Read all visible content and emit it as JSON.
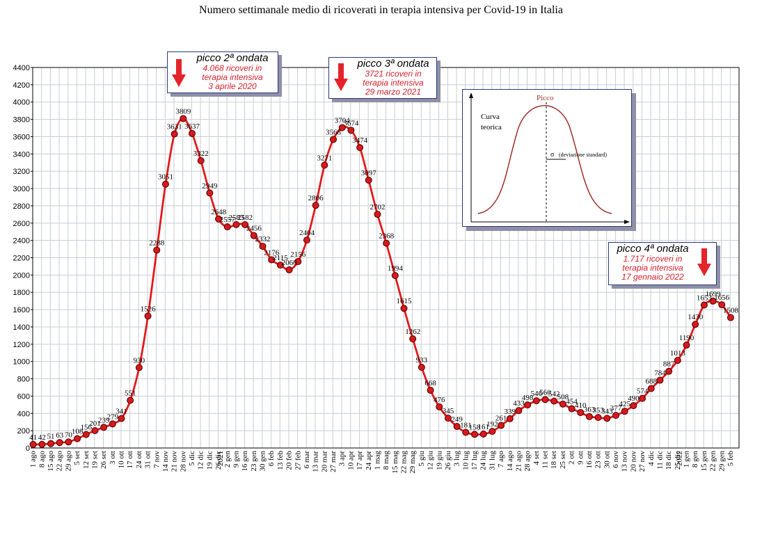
{
  "chart_data": {
    "type": "line",
    "title": "Numero settimanale medio di ricoverati in terapia intensiva per Covid-19 in Italia",
    "ylim": [
      0,
      4400
    ],
    "y_ticks": [
      0,
      200,
      400,
      600,
      800,
      1000,
      1200,
      1400,
      1600,
      1800,
      2000,
      2200,
      2400,
      2600,
      2800,
      3000,
      3200,
      3400,
      3600,
      3800,
      4000,
      4200,
      4400
    ],
    "x": [
      "1 ago",
      "8 ago",
      "15 ago",
      "22 ago",
      "29 ago",
      "5 set",
      "12 set",
      "19 set",
      "26 set",
      "3 ott",
      "10 ott",
      "17 ott",
      "24 ott",
      "31 ott",
      "7 nov",
      "14 nov",
      "21 nov",
      "28 nov",
      "5 dic",
      "12 dic",
      "19 dic",
      "26 dic",
      "2 gen",
      "9 gen",
      "16 gen",
      "23 gen",
      "30 gen",
      "6 feb",
      "13 feb",
      "20 feb",
      "27 feb",
      "6 mar",
      "13 mar",
      "20 mar",
      "27 mar",
      "3 apr",
      "10 apr",
      "17 apr",
      "24 apr",
      "1 mag",
      "8 mag",
      "15 mag",
      "22 mag",
      "29 mag",
      "5 giu",
      "12 giu",
      "19 giu",
      "26 giu",
      "3 lug",
      "10 lug",
      "17 lug",
      "24 lug",
      "31 lug",
      "7 ago",
      "14 ago",
      "21 ago",
      "28 ago",
      "4 set",
      "11 set",
      "18 set",
      "25 set",
      "2 ott",
      "9 ott",
      "16 ott",
      "23 ott",
      "30 ott",
      "6 nov",
      "13 nov",
      "20 nov",
      "27 nov",
      "4 dic",
      "11 dic",
      "18 dic",
      "25 dic",
      "1 gen",
      "8 gen",
      "15 gen",
      "22 gen",
      "29 gen",
      "5 feb"
    ],
    "year_labels": [
      {
        "label": "2021",
        "index": 22
      },
      {
        "label": "2022",
        "index": 74
      }
    ],
    "series": [
      {
        "values": [
          41,
          42,
          51,
          63,
          70,
          108,
          156,
          201,
          239,
          279,
          341,
          551,
          930,
          1526,
          2288,
          3051,
          3631,
          3809,
          3637,
          3322,
          2949,
          2648,
          2557,
          2583,
          2582,
          2456,
          2332,
          2176,
          2115,
          2060,
          2156,
          2404,
          2806,
          3271,
          3568,
          3704,
          3674,
          3474,
          3097,
          2702,
          2368,
          1994,
          1615,
          1262,
          933,
          668,
          476,
          345,
          249,
          181,
          158,
          161,
          192,
          261,
          339,
          433,
          498,
          546,
          560,
          542,
          508,
          454,
          410,
          363,
          353,
          343,
          377,
          425,
          490,
          574,
          688,
          784,
          887,
          1013,
          1190,
          1430,
          1653,
          1699,
          1656,
          1508
        ],
        "labels": [
          "41",
          "42",
          "51",
          "63",
          "70",
          "108",
          "156",
          "201",
          "239",
          "279",
          "341",
          "551",
          "930",
          "1526",
          "2288",
          "3051",
          "3631",
          "3809",
          "3637",
          "3322",
          "2949",
          "2648",
          "2557",
          "2583",
          "2582",
          "2456",
          "2332",
          "2176",
          "2115",
          "2060",
          "2156",
          "2404",
          "2806",
          "3271",
          "3568",
          "3704",
          "3674",
          "3474",
          "3097",
          "2702",
          "2368",
          "1994",
          "1615",
          "1262",
          "933",
          "668",
          "476",
          "345",
          "249",
          "181",
          "158",
          "161",
          "192",
          "261",
          "339",
          "433",
          "498",
          "546",
          "560",
          "542",
          "508",
          "454",
          "410",
          "363",
          "353",
          "343",
          "377",
          "425",
          "490",
          "574",
          "688",
          "784",
          "887",
          "1013",
          "1190",
          "1430",
          "1653",
          "1699",
          "1656",
          "1508"
        ]
      }
    ],
    "grid": true,
    "line_color": "#e31a1c",
    "marker_color": "#d7191c"
  },
  "annotations": [
    {
      "head": "picco 2ª ondata",
      "lines": [
        "4.068 ricoveri in",
        "terapia intensiva",
        "3 aprile 2020"
      ]
    },
    {
      "head": "picco 3ª ondata",
      "lines": [
        "3721 ricoveri in",
        "terapia intensiva",
        "29 marzo 2021"
      ]
    },
    {
      "head": "picco 4ª ondata",
      "lines": [
        "1.717 ricoveri in",
        "terapia intensiva",
        "17 gennaio 2022"
      ]
    }
  ],
  "inset": {
    "label_top": "Picco",
    "label_curve_1": "Curva",
    "label_curve_2": "teorica",
    "label_sigma": "σ",
    "label_sigma_text": "(deviazione standard)"
  },
  "colors": {
    "arrow": "#e5232a",
    "annotation_text": "#d4202a",
    "grid": "#c8cdd2"
  }
}
